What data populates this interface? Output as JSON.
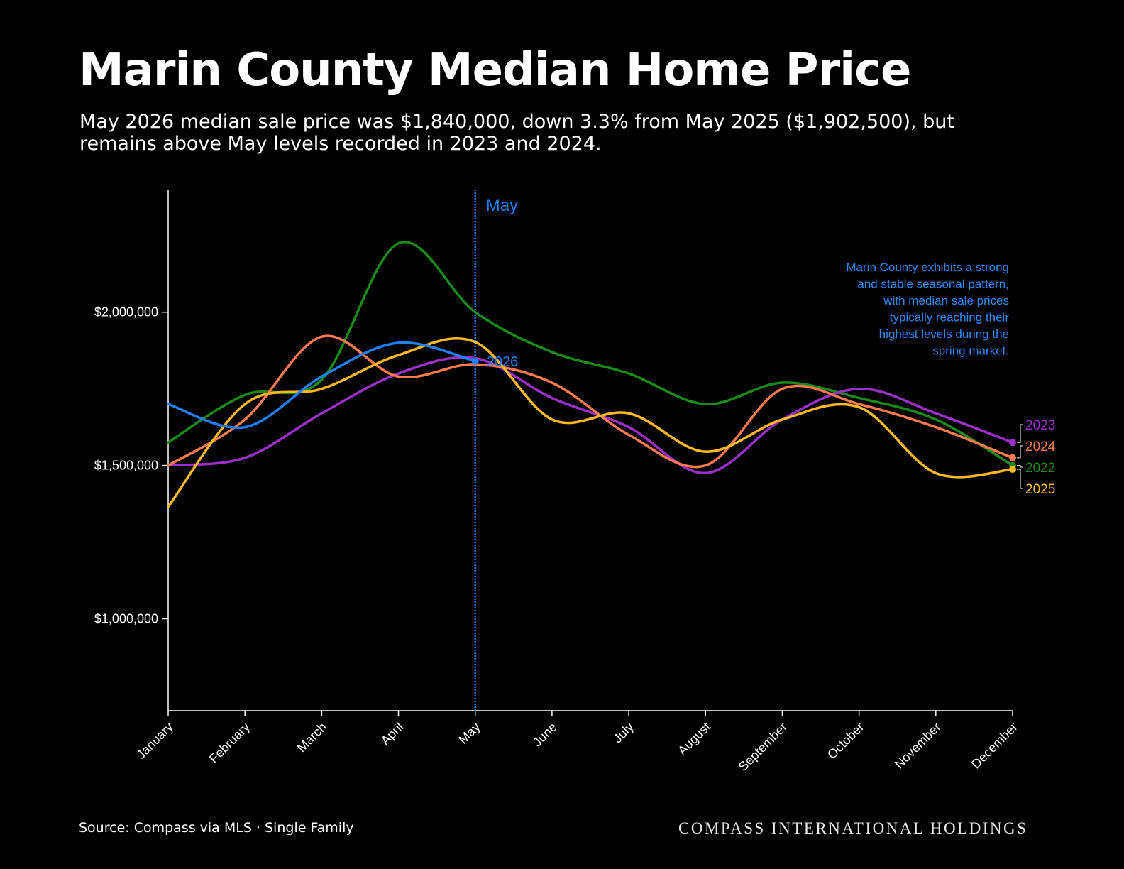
{
  "title": "Marin County Median Home Price",
  "subtitle": "May 2026 median sale price was $1,840,000, down 3.3% from May 2025 ($1,902,500), but remains above May levels recorded in 2023 and 2024.",
  "source": "Source: Compass via MLS · Single Family",
  "brand": "COMPASS INTERNATIONAL HOLDINGS",
  "colors": {
    "background": "#000000",
    "2022": "#1a8a1a",
    "2023": "#9b30c8",
    "2024": "#ff7a50",
    "2025": "#ffb822",
    "2026": "#1f7ff5",
    "annotation": "#2f8af5"
  },
  "chart_data": {
    "type": "line",
    "categories": [
      "January",
      "February",
      "March",
      "April",
      "May",
      "June",
      "July",
      "August",
      "September",
      "October",
      "November",
      "December"
    ],
    "ylim": [
      700000,
      2400000
    ],
    "yticks": [
      1000000,
      1500000,
      2000000
    ],
    "ytick_labels": [
      "$1,000,000",
      "$1,500,000",
      "$2,000,000"
    ],
    "xlabel": "",
    "ylabel": "",
    "grid": false,
    "marker": {
      "month": "May",
      "label": "May"
    },
    "annotation": "Marin County exhibits a strong and stable seasonal pattern, with median sale prices typically reaching their highest levels during the spring market.",
    "series": [
      {
        "name": "2022",
        "values": [
          1575000,
          1730000,
          1780000,
          2225000,
          2000000,
          1870000,
          1800000,
          1700000,
          1770000,
          1720000,
          1650000,
          1500000
        ]
      },
      {
        "name": "2023",
        "values": [
          1500000,
          1525000,
          1670000,
          1800000,
          1850000,
          1720000,
          1625000,
          1475000,
          1650000,
          1750000,
          1670000,
          1575000
        ]
      },
      {
        "name": "2024",
        "values": [
          1500000,
          1650000,
          1920000,
          1790000,
          1830000,
          1770000,
          1600000,
          1500000,
          1750000,
          1700000,
          1625000,
          1525000
        ]
      },
      {
        "name": "2025",
        "values": [
          1365000,
          1700000,
          1750000,
          1860000,
          1902500,
          1650000,
          1670000,
          1545000,
          1650000,
          1690000,
          1475000,
          1487500
        ]
      },
      {
        "name": "2026",
        "values": [
          1700000,
          1625000,
          1790000,
          1900000,
          1840000,
          null,
          null,
          null,
          null,
          null,
          null,
          null
        ]
      }
    ]
  }
}
